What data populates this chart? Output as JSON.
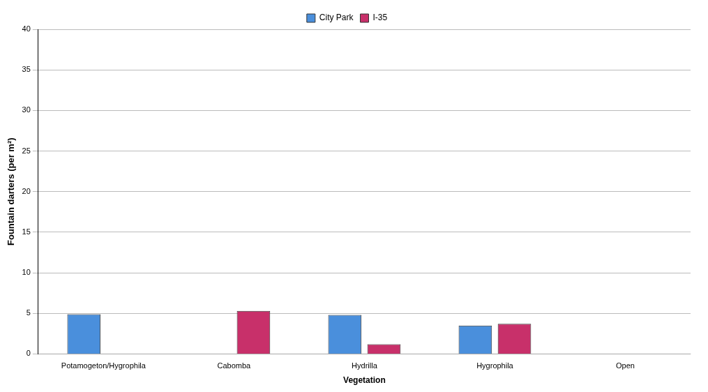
{
  "chart_data": {
    "type": "bar",
    "xlabel": "Vegetation",
    "ylabel": "Fountain darters (per m²)",
    "categories": [
      "Potamogeton/Hygrophila",
      "Cabomba",
      "Hydrilla",
      "Hygrophila",
      "Open"
    ],
    "series": [
      {
        "name": "City Park",
        "color": "#4a8fdc",
        "values": [
          4.9,
          0,
          4.8,
          3.5,
          0
        ]
      },
      {
        "name": "I-35",
        "color": "#c8306a",
        "values": [
          0,
          5.3,
          1.2,
          3.7,
          0
        ]
      }
    ],
    "ylim": [
      0,
      40
    ],
    "yticks": [
      0,
      5,
      10,
      15,
      20,
      25,
      30,
      35,
      40
    ],
    "grid": "y",
    "legend": "top"
  }
}
